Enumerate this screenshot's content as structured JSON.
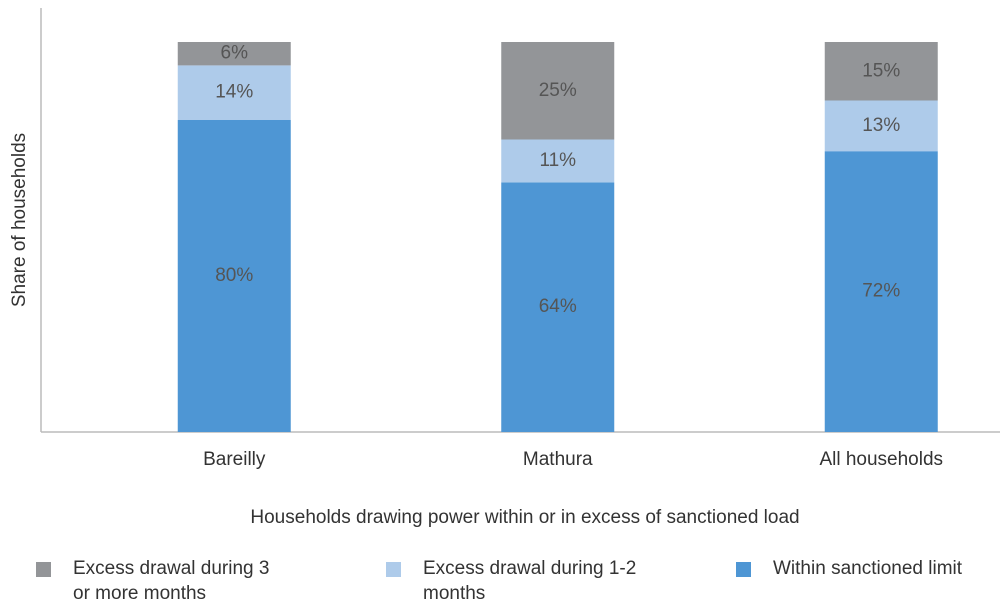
{
  "chart_data": {
    "type": "stacked-bar",
    "y_label": "Share  of households",
    "x_label": "Households drawing power within or in excess of sanctioned load",
    "categories": [
      "Bareilly",
      "Mathura",
      "All households"
    ],
    "ylim": [
      0,
      100
    ],
    "series": [
      {
        "name": "Within sanctioned limit",
        "color": "#4e96d4",
        "values": [
          80,
          64,
          72
        ],
        "value_labels": [
          "80%",
          "64%",
          "72%"
        ]
      },
      {
        "name": "Excess drawal during 1-2 months",
        "color": "#aecbea",
        "values": [
          14,
          11,
          13
        ],
        "value_labels": [
          "14%",
          "11%",
          "13%"
        ]
      },
      {
        "name": "Excess drawal during 3 or more months",
        "color": "#939598",
        "values": [
          6,
          25,
          15
        ],
        "value_labels": [
          "6%",
          "25%",
          "15%"
        ]
      }
    ],
    "legend_order": [
      2,
      1,
      0
    ]
  }
}
